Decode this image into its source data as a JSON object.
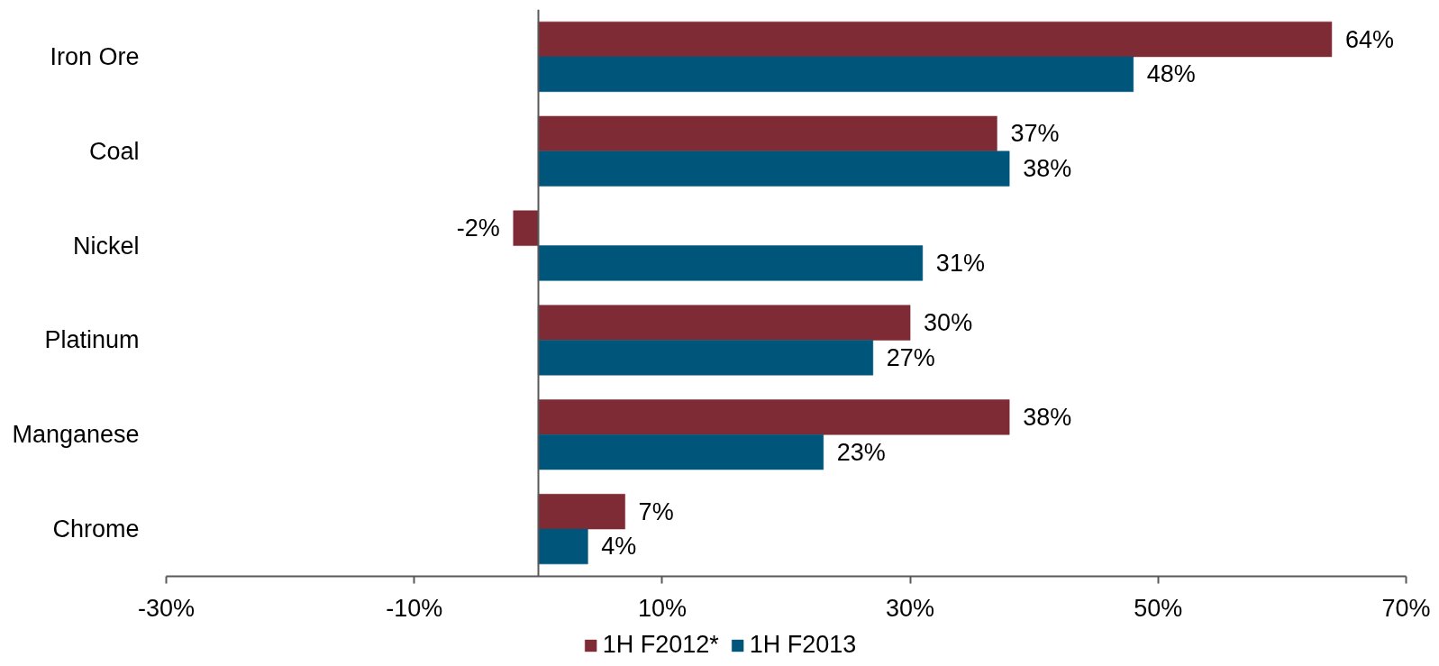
{
  "chart_data": {
    "type": "bar",
    "orientation": "horizontal",
    "categories": [
      "Iron Ore",
      "Coal",
      "Nickel",
      "Platinum",
      "Manganese",
      "Chrome"
    ],
    "series": [
      {
        "name": "1H F2012*",
        "color": "#7f2b35",
        "values": [
          64,
          37,
          -2,
          30,
          38,
          7
        ],
        "value_labels": [
          "64%",
          "37%",
          "-2%",
          "30%",
          "38%",
          "7%"
        ]
      },
      {
        "name": "1H F2013",
        "color": "#00567a",
        "values": [
          48,
          38,
          31,
          27,
          23,
          4
        ],
        "value_labels": [
          "48%",
          "38%",
          "31%",
          "27%",
          "23%",
          "4%"
        ]
      }
    ],
    "xlim": [
      -30,
      70
    ],
    "xticks": [
      {
        "value": -30,
        "label": "-30%"
      },
      {
        "value": -10,
        "label": "-10%"
      },
      {
        "value": 10,
        "label": "10%"
      },
      {
        "value": 30,
        "label": "30%"
      },
      {
        "value": 50,
        "label": "50%"
      },
      {
        "value": 70,
        "label": "70%"
      }
    ],
    "legend": "bottom",
    "grid": false
  }
}
